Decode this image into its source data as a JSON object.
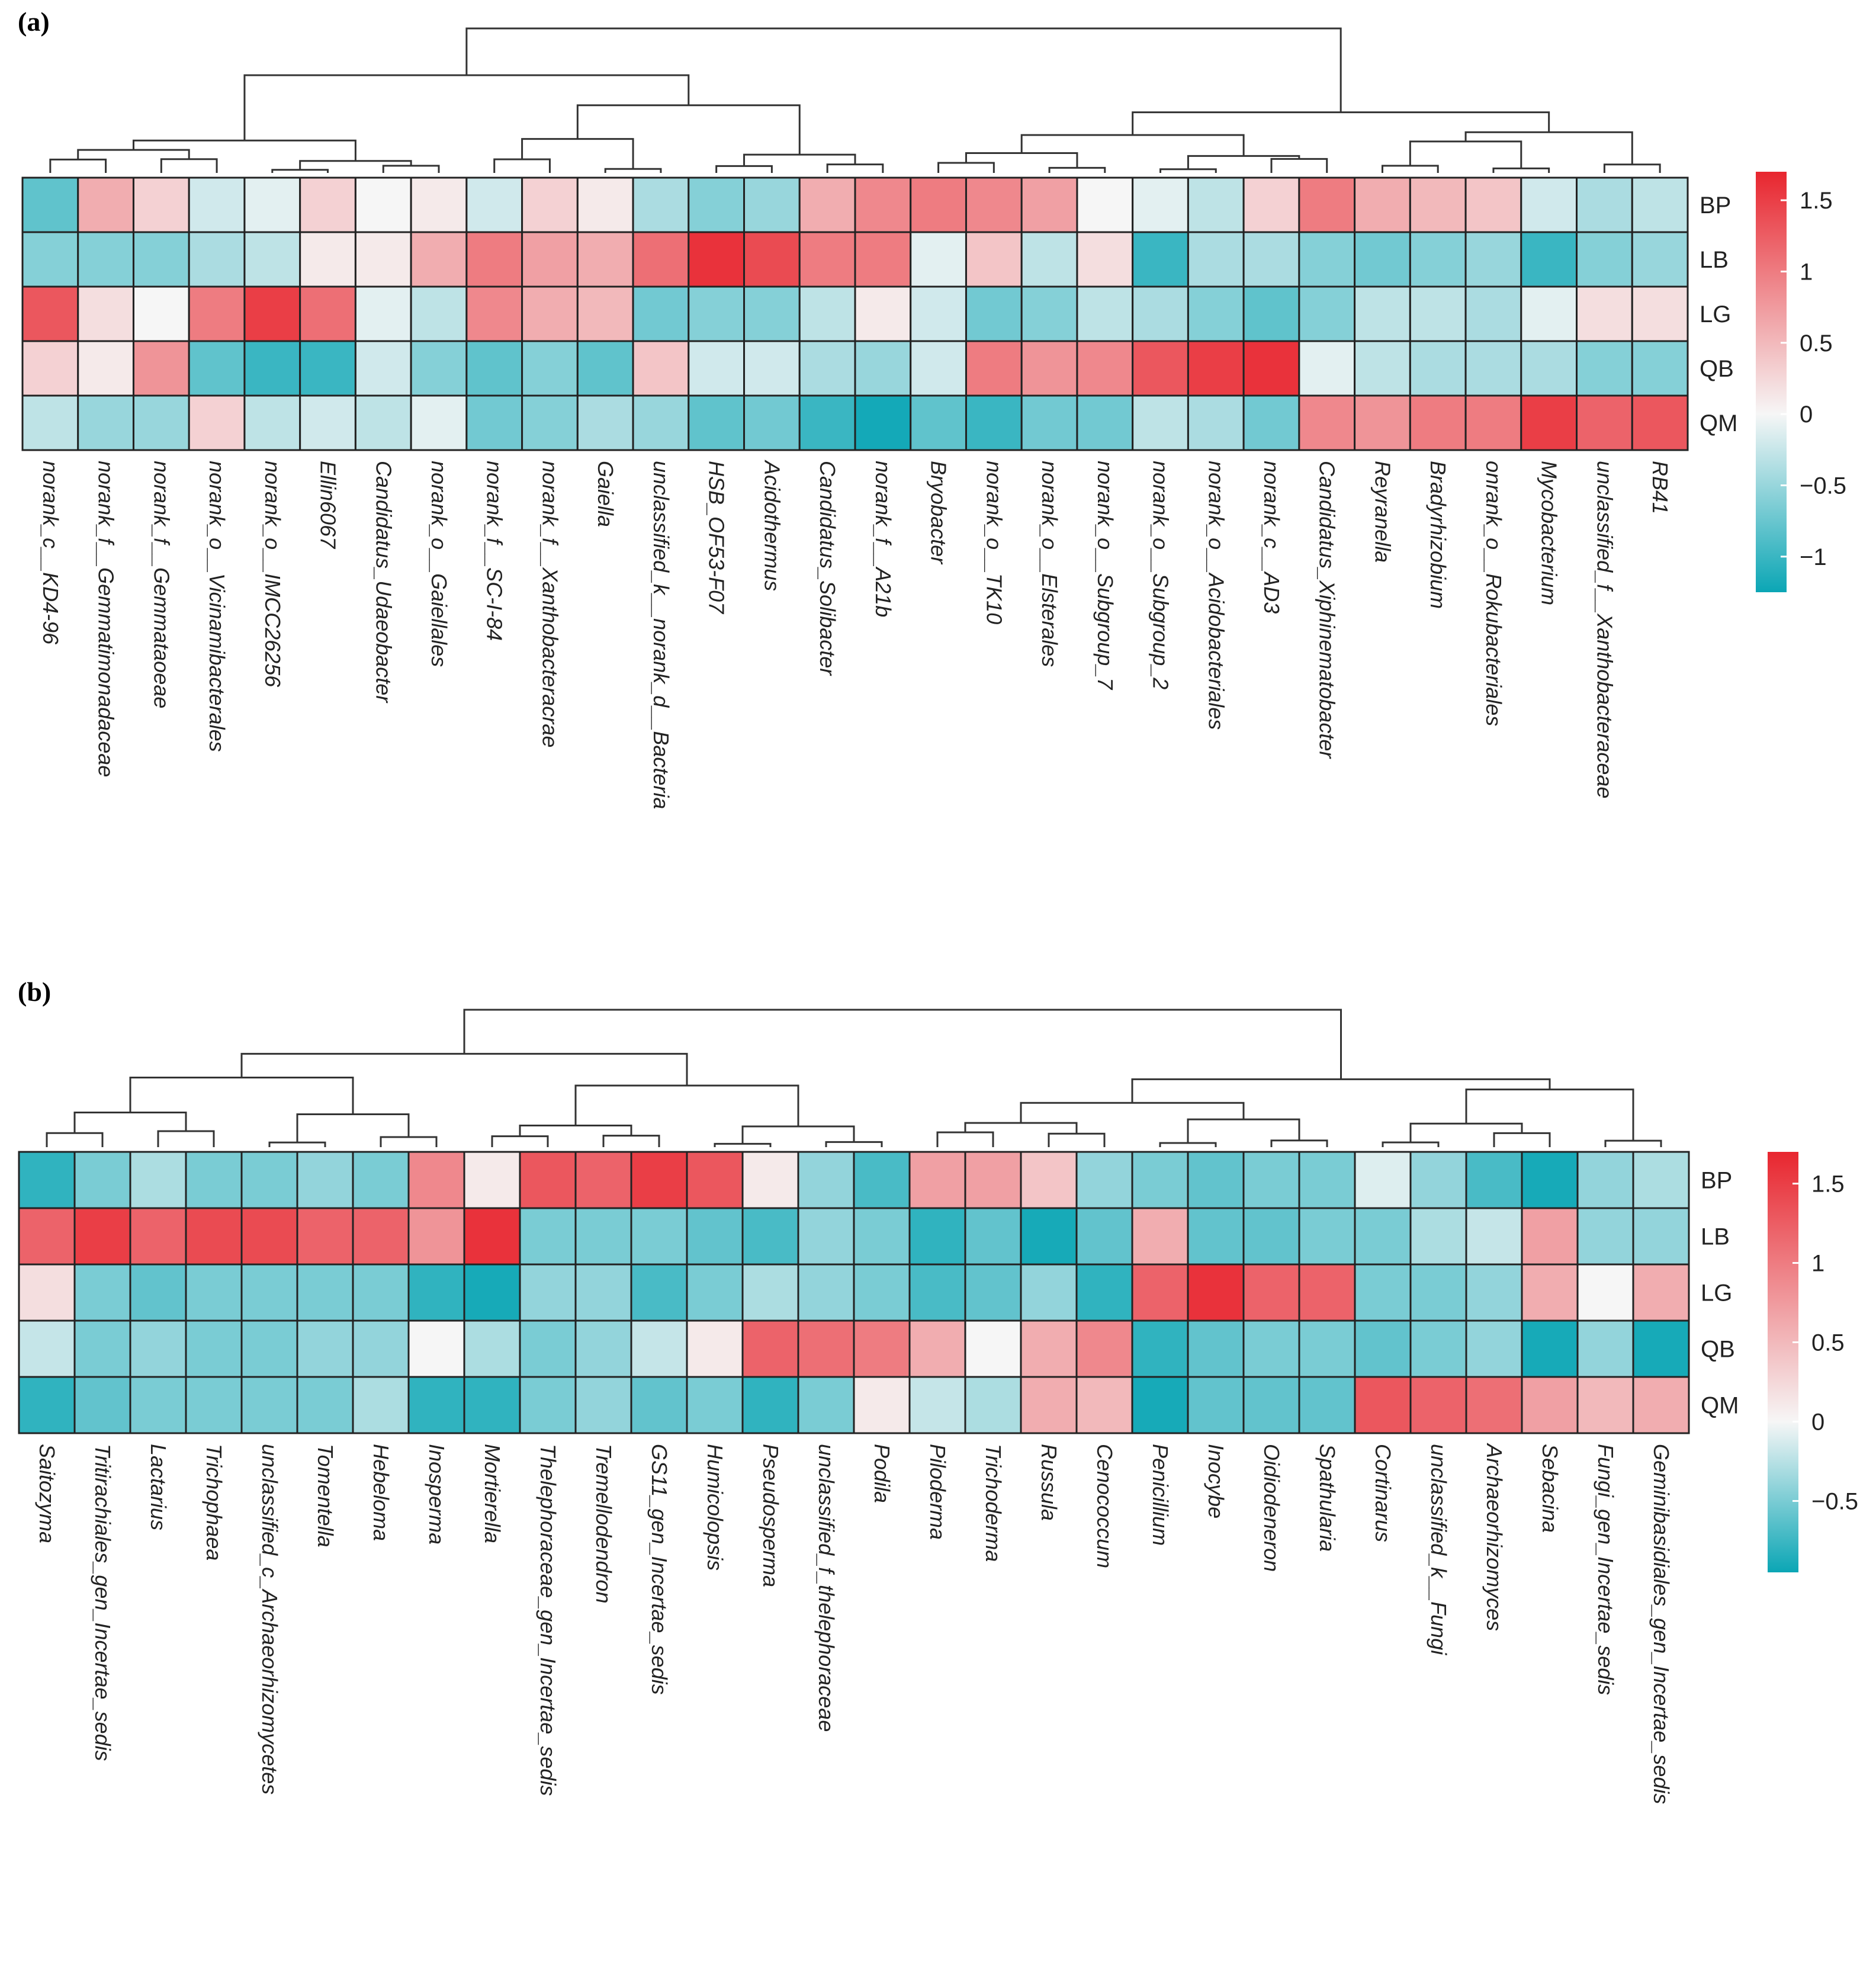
{
  "figure": {
    "panel_a_tag": "(a)",
    "panel_b_tag": "(b)"
  },
  "colors": {
    "low": "#0ba6b5",
    "mid": "#f6f6f6",
    "high": "#e8262f"
  },
  "chart_data": [
    {
      "type": "heatmap",
      "title": "",
      "panel": "(a)",
      "rows": [
        "BP",
        "LB",
        "LG",
        "QB",
        "QM"
      ],
      "columns": [
        "norank_c__KD4-96",
        "norank_f__Gemmatimonadaceae",
        "norank_f__Gemmataoeae",
        "norank_o__Vicinamibacterales",
        "norank_o__IMCC26256",
        "Ellin6067",
        "Candidatus_Udaeobacter",
        "norank_o__Gaiellales",
        "norank_f__SC-I-84",
        "norank_f__Xanthobacteracrae",
        "Gaiella",
        "unclassified_k__norank_d__Bacteria",
        "HSB_OF53-F07",
        "Acidothermus",
        "Candidatus_Solibacter",
        "norank_f__A21b",
        "Bryobacter",
        "norank_o__TK10",
        "norank_o__Elsterales",
        "norank_o__Subgroup_7",
        "norank_o__Subgroup_2",
        "norank_o__Acidobacteriales",
        "norank_c__AD3",
        "Candidatus_Xiphinematobacter",
        "Reyranella",
        "Bradyrhizobium",
        "onrank_o__Rokubacteriales",
        "Mycobacterium",
        "unclassified_f__Xanthobacteraceae",
        "RB41"
      ],
      "values": [
        [
          -0.8,
          0.6,
          0.3,
          -0.2,
          -0.1,
          0.3,
          0.0,
          0.1,
          -0.2,
          0.3,
          0.1,
          -0.4,
          -0.6,
          -0.5,
          0.6,
          0.9,
          1.0,
          0.9,
          0.7,
          0.0,
          -0.1,
          -0.3,
          0.3,
          1.0,
          0.6,
          0.5,
          0.4,
          -0.2,
          -0.4,
          -0.3
        ],
        [
          -0.6,
          -0.6,
          -0.6,
          -0.4,
          -0.3,
          0.1,
          0.1,
          0.6,
          1.0,
          0.7,
          0.6,
          1.1,
          1.6,
          1.4,
          1.0,
          1.0,
          -0.1,
          0.4,
          -0.3,
          0.2,
          -1.0,
          -0.4,
          -0.4,
          -0.6,
          -0.7,
          -0.6,
          -0.5,
          -1.0,
          -0.6,
          -0.5
        ],
        [
          1.3,
          0.2,
          0.0,
          1.0,
          1.5,
          1.1,
          -0.1,
          -0.3,
          0.9,
          0.6,
          0.5,
          -0.7,
          -0.6,
          -0.6,
          -0.3,
          0.1,
          -0.2,
          -0.7,
          -0.6,
          -0.3,
          -0.4,
          -0.6,
          -0.8,
          -0.6,
          -0.3,
          -0.3,
          -0.4,
          -0.1,
          0.2,
          0.2
        ],
        [
          0.3,
          0.1,
          0.8,
          -0.8,
          -1.0,
          -1.0,
          -0.2,
          -0.6,
          -0.8,
          -0.6,
          -0.8,
          0.4,
          -0.2,
          -0.2,
          -0.4,
          -0.5,
          -0.2,
          1.0,
          0.8,
          0.9,
          1.3,
          1.5,
          1.6,
          -0.1,
          -0.3,
          -0.4,
          -0.4,
          -0.4,
          -0.6,
          -0.6
        ],
        [
          -0.3,
          -0.5,
          -0.5,
          0.3,
          -0.3,
          -0.2,
          -0.3,
          -0.1,
          -0.7,
          -0.6,
          -0.4,
          -0.5,
          -0.8,
          -0.7,
          -1.0,
          -1.2,
          -0.8,
          -1.0,
          -0.7,
          -0.7,
          -0.3,
          -0.4,
          -0.7,
          0.9,
          0.8,
          1.0,
          1.0,
          1.5,
          1.2,
          1.3
        ]
      ],
      "colorbar": {
        "ticks": [
          1.5,
          1,
          0.5,
          0,
          -0.5,
          -1
        ],
        "tick_labels": [
          "1.5",
          "1",
          "0.5",
          "0",
          "−0.5",
          "−1"
        ],
        "range": [
          -1.25,
          1.7
        ]
      }
    },
    {
      "type": "heatmap",
      "title": "",
      "panel": "(b)",
      "rows": [
        "BP",
        "LB",
        "LG",
        "QB",
        "QM"
      ],
      "columns": [
        "Saitozyma",
        "Tritirachiales_gen_Incertae_sedis",
        "Lactarius",
        "Trichophaea",
        "unclassified_c_Archaeorhizomycetes",
        "Tomentella",
        "Hebeloma",
        "Inosperma",
        "Mortierella",
        "Thelephoraceae_gen_Incertae_sedis",
        "Tremellodendron",
        "GS11_gen_Incertae_sedis",
        "Humicolopsis",
        "Pseudosperma",
        "unclassified_f_thelephoraceae",
        "Podila",
        "Piloderma",
        "Trichoderma",
        "Russula",
        "Cenococcum",
        "Penicillium",
        "Inocybe",
        "Oidiodeneron",
        "Spathularia",
        "Cortinarus",
        "unclassified_k__Fungi",
        "Archaeorhizomyces",
        "Sebacina",
        "Fungi_gen_Incertae_sedis",
        "Geminibasidiales_gen_Incertae_sedis"
      ],
      "values": [
        [
          -0.8,
          -0.5,
          -0.3,
          -0.5,
          -0.5,
          -0.4,
          -0.5,
          0.9,
          0.1,
          1.3,
          1.2,
          1.5,
          1.3,
          0.1,
          -0.4,
          -0.7,
          0.7,
          0.7,
          0.4,
          -0.4,
          -0.5,
          -0.6,
          -0.5,
          -0.5,
          -0.1,
          -0.4,
          -0.7,
          -0.9,
          -0.4,
          -0.3
        ],
        [
          1.2,
          1.5,
          1.2,
          1.4,
          1.4,
          1.2,
          1.2,
          0.8,
          1.6,
          -0.5,
          -0.5,
          -0.5,
          -0.6,
          -0.7,
          -0.4,
          -0.5,
          -0.8,
          -0.6,
          -0.9,
          -0.6,
          0.6,
          -0.6,
          -0.6,
          -0.5,
          -0.5,
          -0.3,
          -0.2,
          0.7,
          -0.4,
          -0.4
        ],
        [
          0.2,
          -0.5,
          -0.6,
          -0.5,
          -0.5,
          -0.5,
          -0.5,
          -0.8,
          -0.9,
          -0.4,
          -0.4,
          -0.7,
          -0.5,
          -0.3,
          -0.4,
          -0.5,
          -0.7,
          -0.6,
          -0.4,
          -0.8,
          1.2,
          1.6,
          1.2,
          1.2,
          -0.5,
          -0.5,
          -0.4,
          0.6,
          0.0,
          0.6
        ],
        [
          -0.2,
          -0.5,
          -0.4,
          -0.5,
          -0.5,
          -0.4,
          -0.4,
          0.0,
          -0.3,
          -0.5,
          -0.4,
          -0.2,
          0.1,
          1.2,
          1.1,
          1.0,
          0.6,
          0.0,
          0.6,
          0.9,
          -0.8,
          -0.6,
          -0.5,
          -0.5,
          -0.6,
          -0.5,
          -0.4,
          -0.9,
          -0.4,
          -0.9
        ],
        [
          -0.8,
          -0.6,
          -0.5,
          -0.5,
          -0.5,
          -0.5,
          -0.3,
          -0.8,
          -0.8,
          -0.5,
          -0.4,
          -0.6,
          -0.5,
          -0.8,
          -0.5,
          0.1,
          -0.2,
          -0.3,
          0.6,
          0.5,
          -0.9,
          -0.6,
          -0.6,
          -0.6,
          1.3,
          1.2,
          1.1,
          0.7,
          0.5,
          0.6
        ]
      ],
      "colorbar": {
        "ticks": [
          1.5,
          1,
          0.5,
          0,
          -0.5
        ],
        "tick_labels": [
          "1.5",
          "1",
          "0.5",
          "0",
          "−0.5"
        ],
        "range": [
          -0.95,
          1.7
        ]
      }
    }
  ]
}
